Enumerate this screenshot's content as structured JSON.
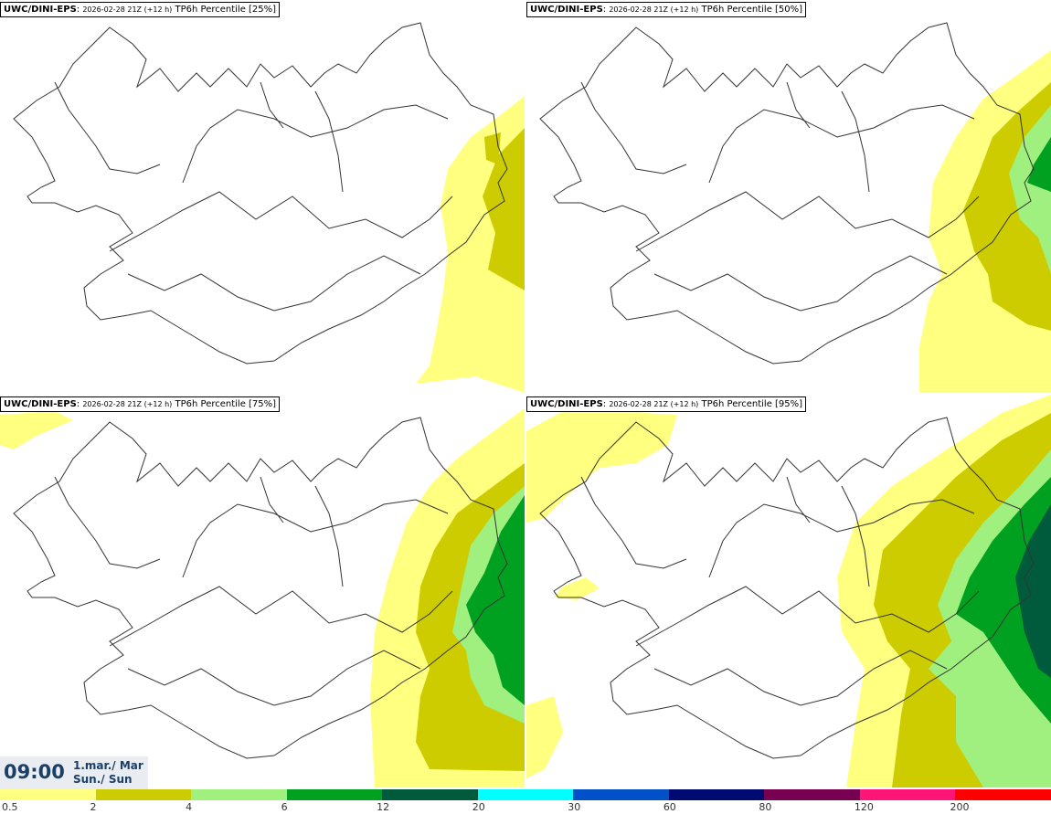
{
  "panels": [
    {
      "model": "UWC/DINI-EPS",
      "run": "2026-02-28 21Z (+12 h)",
      "field": "TP6h Percentile [25%]",
      "percentile": 25
    },
    {
      "model": "UWC/DINI-EPS",
      "run": "2026-02-28 21Z (+12 h)",
      "field": "TP6h Percentile [50%]",
      "percentile": 50
    },
    {
      "model": "UWC/DINI-EPS",
      "run": "2026-02-28 21Z (+12 h)",
      "field": "TP6h Percentile [75%]",
      "percentile": 75
    },
    {
      "model": "UWC/DINI-EPS",
      "run": "2026-02-28 21Z (+12 h)",
      "field": "TP6h Percentile [95%]",
      "percentile": 95
    }
  ],
  "valid_time": {
    "time": "09:00",
    "date": "1.mar./ Mar",
    "day": "Sun./ Sun"
  },
  "colorbar": {
    "ticks": [
      "0.5",
      "2",
      "4",
      "6",
      "12",
      "20",
      "30",
      "60",
      "80",
      "120",
      "200"
    ],
    "colors": [
      "#ffff80",
      "#cccc00",
      "#a0f080",
      "#00a020",
      "#005a3c",
      "#00ffff",
      "#0050c8",
      "#000a70",
      "#780050",
      "#ff1478",
      "#ff0000"
    ]
  }
}
